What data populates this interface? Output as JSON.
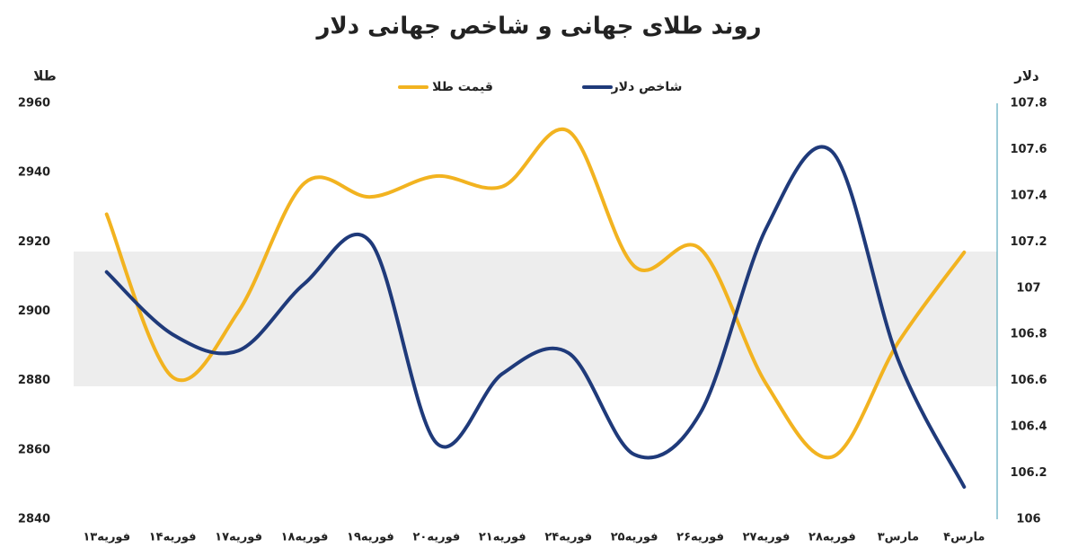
{
  "chart_data": {
    "type": "line",
    "title": "روند طلای جهانی و شاخص جهانی دلار",
    "ylabel": "طلا",
    "y2label": "دلار",
    "categories": [
      "۱۳فوریه",
      "۱۴فوریه",
      "۱۷فوریه",
      "۱۸فوریه",
      "۱۹فوریه",
      "۲۰فوریه",
      "۲۱فوریه",
      "۲۴فوریه",
      "۲۵فوریه",
      "۲۶فوریه",
      "۲۷فوریه",
      "۲۸فوریه",
      "۳مارس",
      "۴مارس"
    ],
    "series": [
      {
        "name": "قیمت طلا",
        "color": "#f2b320",
        "values": [
          2928,
          2881,
          2900,
          2937,
          2933,
          2939,
          2936,
          2952,
          2913,
          2918,
          2879,
          2858,
          2891,
          2917
        ]
      },
      {
        "name": "شاخص دلار",
        "color": "#1f3a7a",
        "axis": "y2",
        "values": [
          107.07,
          106.8,
          106.73,
          107.02,
          107.2,
          106.33,
          106.63,
          106.72,
          106.28,
          106.46,
          107.26,
          107.59,
          106.69,
          106.14
        ]
      }
    ],
    "ylim": [
      2840,
      2960
    ],
    "yticks": [
      2840,
      2860,
      2880,
      2900,
      2920,
      2940,
      2960
    ],
    "y2lim": [
      106,
      107.8
    ],
    "y2ticks": [
      106,
      106.2,
      106.4,
      106.6,
      106.8,
      107,
      107.2,
      107.4,
      107.6,
      107.8
    ],
    "grid": false,
    "legend": "top"
  }
}
